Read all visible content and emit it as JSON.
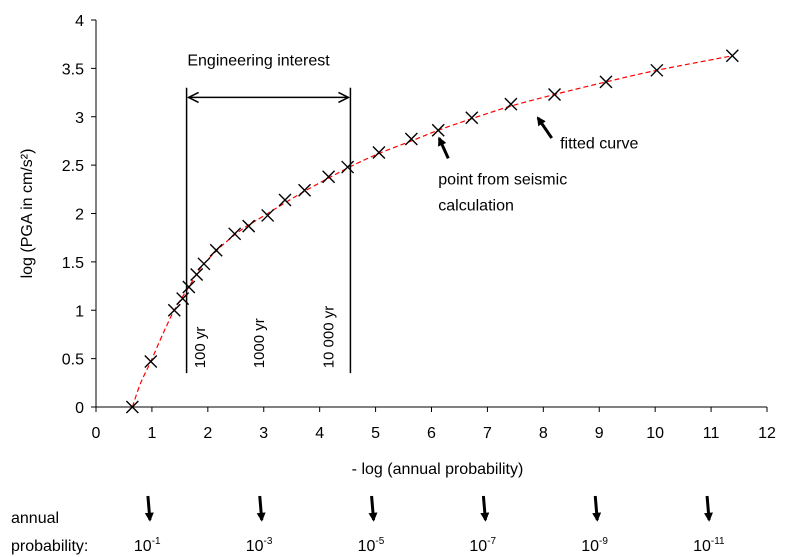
{
  "chart_data": {
    "type": "scatter",
    "xlabel": "- log (annual probability)",
    "ylabel": "log (PGA in cm/s²)",
    "xlim": [
      0,
      12
    ],
    "ylim": [
      0,
      4
    ],
    "xticks": [
      0,
      1,
      2,
      3,
      4,
      5,
      6,
      7,
      8,
      9,
      10,
      11,
      12
    ],
    "yticks": [
      0,
      0.5,
      1,
      1.5,
      2,
      2.5,
      3,
      3.5,
      4
    ],
    "xtick_labels": [
      "0",
      "1",
      "2",
      "3",
      "4",
      "5",
      "6",
      "7",
      "8",
      "9",
      "10",
      "11",
      "12"
    ],
    "ytick_labels": [
      "0",
      "0.5",
      "1",
      "1.5",
      "2",
      "2.5",
      "3",
      "3.5",
      "4"
    ],
    "grid": false,
    "series": [
      {
        "points": [
          {
            "x": 0.65,
            "y": 0.0
          },
          {
            "x": 0.98,
            "y": 0.47
          },
          {
            "x": 1.4,
            "y": 1.0
          },
          {
            "x": 1.55,
            "y": 1.12
          },
          {
            "x": 1.66,
            "y": 1.24
          },
          {
            "x": 1.8,
            "y": 1.37
          },
          {
            "x": 1.93,
            "y": 1.48
          },
          {
            "x": 2.15,
            "y": 1.62
          },
          {
            "x": 2.48,
            "y": 1.79
          },
          {
            "x": 2.73,
            "y": 1.87
          },
          {
            "x": 3.07,
            "y": 1.98
          },
          {
            "x": 3.38,
            "y": 2.14
          },
          {
            "x": 3.73,
            "y": 2.24
          },
          {
            "x": 4.16,
            "y": 2.38
          },
          {
            "x": 4.5,
            "y": 2.48
          },
          {
            "x": 5.06,
            "y": 2.63
          },
          {
            "x": 5.64,
            "y": 2.77
          },
          {
            "x": 6.12,
            "y": 2.86
          },
          {
            "x": 6.72,
            "y": 2.99
          },
          {
            "x": 7.42,
            "y": 3.13
          },
          {
            "x": 8.2,
            "y": 3.23
          },
          {
            "x": 9.12,
            "y": 3.36
          },
          {
            "x": 10.03,
            "y": 3.48
          },
          {
            "x": 11.38,
            "y": 3.63
          }
        ]
      }
    ],
    "fitted_curve": {
      "color": "#ff0000",
      "style": "dashed",
      "points": [
        [
          0.65,
          0.0
        ],
        [
          0.8,
          0.25
        ],
        [
          0.98,
          0.47
        ],
        [
          1.2,
          0.76
        ],
        [
          1.4,
          1.0
        ],
        [
          1.66,
          1.24
        ],
        [
          1.93,
          1.48
        ],
        [
          2.48,
          1.78
        ],
        [
          3.07,
          2.0
        ],
        [
          3.73,
          2.23
        ],
        [
          4.5,
          2.47
        ],
        [
          5.06,
          2.62
        ],
        [
          5.64,
          2.75
        ],
        [
          6.12,
          2.86
        ],
        [
          6.72,
          2.98
        ],
        [
          7.42,
          3.11
        ],
        [
          8.2,
          3.23
        ],
        [
          9.12,
          3.36
        ],
        [
          10.03,
          3.48
        ],
        [
          11.38,
          3.63
        ]
      ]
    },
    "annotations": {
      "engineering_interest": {
        "label": "Engineering interest",
        "x_start": 1.62,
        "x_end": 4.55,
        "arrow_y": 3.2,
        "left_bar_y": [
          0.35,
          3.3
        ],
        "right_bar_y": [
          0.35,
          3.3
        ]
      },
      "return_periods": [
        {
          "label": "100 yr",
          "x": 1.95,
          "y_bottom": 0.4
        },
        {
          "label": "1000 yr",
          "x": 3.0,
          "y_bottom": 0.4
        },
        {
          "label": "10 000 yr",
          "x": 4.25,
          "y_bottom": 0.4
        }
      ],
      "point_label": {
        "lines": [
          "point from seismic",
          "calculation"
        ],
        "text_x": 6.3,
        "text_y1": 2.3,
        "text_y2": 2.03,
        "arrow_from": [
          6.3,
          2.57
        ],
        "arrow_to": [
          6.12,
          2.86
        ]
      },
      "curve_label": {
        "text": "fitted curve",
        "text_x": 8.3,
        "text_y": 2.67,
        "arrow_from": [
          8.15,
          2.78
        ],
        "arrow_to": [
          7.85,
          3.05
        ]
      }
    },
    "probability_scale": {
      "title_line1": "annual",
      "title_line2": "probability:",
      "ticks": [
        {
          "x": 1,
          "base": "10",
          "exp": "-1"
        },
        {
          "x": 3,
          "base": "10",
          "exp": "-3"
        },
        {
          "x": 5,
          "base": "10",
          "exp": "-5"
        },
        {
          "x": 7,
          "base": "10",
          "exp": "-7"
        },
        {
          "x": 9,
          "base": "10",
          "exp": "-9"
        },
        {
          "x": 11,
          "base": "10",
          "exp": "-11"
        }
      ]
    }
  }
}
